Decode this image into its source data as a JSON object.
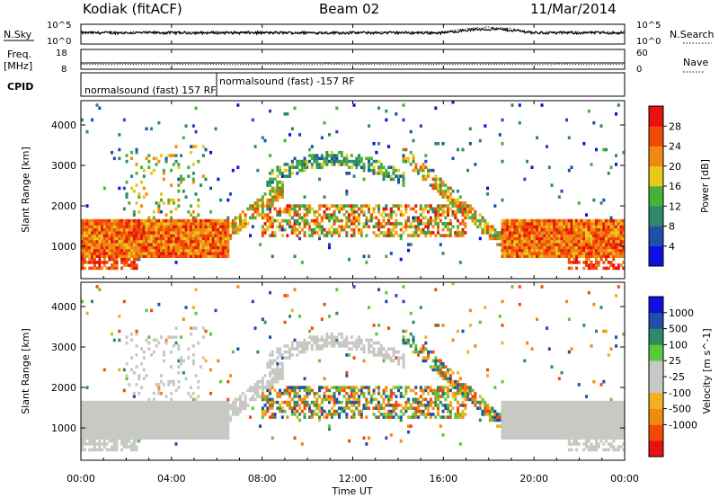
{
  "header": {
    "station": "Kodiak (fitACF)",
    "beam": "Beam 02",
    "date": "11/Mar/2014"
  },
  "strips": {
    "nsky_label": "N.Sky",
    "nsky_ticks": [
      "10^5",
      "10^0"
    ],
    "nsearch_label": "N.Search",
    "nsearch_ticks": [
      "10^5",
      "10^0"
    ],
    "freq_label_line1": "Freq.",
    "freq_label_line2": "[MHz]",
    "freq_ticks": [
      "18",
      "8"
    ],
    "nave_label": "Nave",
    "nave_ticks": [
      "60",
      "0"
    ],
    "cpid_label": "CPID",
    "cpid_modes": [
      {
        "text": "normalsound (fast) 157 RF",
        "start_hour": 0
      },
      {
        "text": "normalsound (fast) -157 RF",
        "start_hour": 6
      }
    ]
  },
  "colors": {
    "power_scale": [
      "#1010e0",
      "#1f4faa",
      "#2f8a6a",
      "#47b23a",
      "#e8c81a",
      "#f08a10",
      "#f04a08",
      "#e81010"
    ],
    "velocity_scale": [
      "#e81010",
      "#f04a08",
      "#f08a10",
      "#f0b020",
      "#c8c8c4",
      "#c8c8c4",
      "#5ac83a",
      "#2f8a6a",
      "#1f4faa",
      "#1010e0"
    ]
  },
  "chart_data": [
    {
      "type": "heatmap",
      "name": "power",
      "ylabel": "Slant Range [km]",
      "yticks": [
        1000,
        2000,
        3000,
        4000
      ],
      "ylim": [
        200,
        4600
      ],
      "colorbar_label": "Power [dB]",
      "colorbar_ticks": [
        4,
        8,
        12,
        16,
        20,
        24,
        28
      ],
      "colorbar_range": [
        0,
        32
      ]
    },
    {
      "type": "heatmap",
      "name": "velocity",
      "ylabel": "Slant Range [km]",
      "yticks": [
        1000,
        2000,
        3000,
        4000
      ],
      "ylim": [
        200,
        4600
      ],
      "colorbar_label": "Velocity [m s^-1]",
      "colorbar_ticks": [
        "1000",
        "500",
        "100",
        "25",
        "-25",
        "-100",
        "-500",
        "-1000"
      ]
    }
  ],
  "xaxis": {
    "label": "Time UT",
    "ticks": [
      "00:00",
      "04:00",
      "08:00",
      "12:00",
      "16:00",
      "20:00",
      "00:00"
    ],
    "range_hours": [
      0,
      24
    ]
  }
}
